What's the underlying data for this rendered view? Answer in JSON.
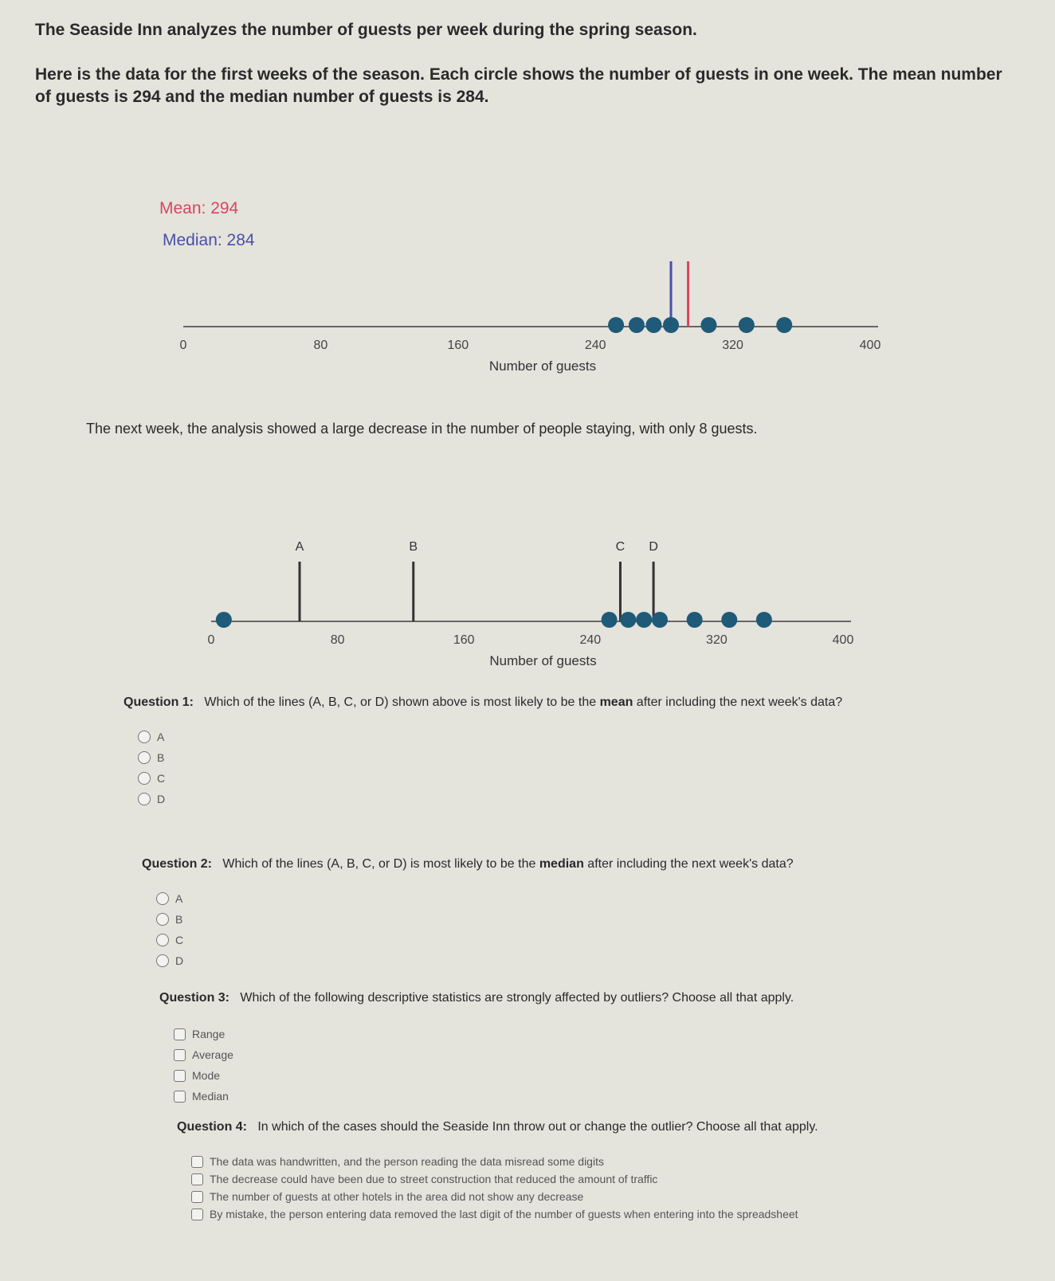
{
  "intro": {
    "line1": "The Seaside Inn analyzes the number of guests per week during the spring season.",
    "line2": "Here is the data for the first weeks of the season. Each circle shows the number of guests in one week. The mean number of guests is 294 and the median number of guests is 284."
  },
  "chart_data": [
    {
      "type": "scatter",
      "subtype": "dot-plot",
      "xlabel": "Number of guests",
      "xticks": [
        0,
        80,
        160,
        240,
        320,
        400
      ],
      "xlim": [
        0,
        400
      ],
      "values": [
        252,
        264,
        274,
        284,
        306,
        328,
        350
      ],
      "annotations": [
        {
          "label": "Mean: 294",
          "value": 294,
          "color": "#d9455f"
        },
        {
          "label": "Median: 284",
          "value": 284,
          "color": "#4b4fa8"
        }
      ],
      "dot_color": "#1f5a78"
    },
    {
      "type": "scatter",
      "subtype": "dot-plot",
      "xlabel": "Number of guests",
      "xticks": [
        0,
        80,
        160,
        240,
        320,
        400
      ],
      "xlim": [
        0,
        400
      ],
      "values": [
        8,
        252,
        264,
        274,
        284,
        306,
        328,
        350
      ],
      "lines": [
        {
          "label": "A",
          "value": 56
        },
        {
          "label": "B",
          "value": 128
        },
        {
          "label": "C",
          "value": 259
        },
        {
          "label": "D",
          "value": 280
        }
      ],
      "dot_color": "#1f5a78"
    }
  ],
  "between": "The next week, the analysis showed a large decrease in the number of people staying, with only 8 guests.",
  "questions": [
    {
      "label": "Question 1:",
      "pre": "Which of the lines (A, B, C, or D) shown above is most likely to be the ",
      "em": "mean",
      "post": " after including the next week's data?",
      "options": [
        "A",
        "B",
        "C",
        "D"
      ]
    },
    {
      "label": "Question 2:",
      "pre": "Which of the lines (A, B, C, or D) is most likely to be the ",
      "em": "median",
      "post": " after including the next week's data?",
      "options": [
        "A",
        "B",
        "C",
        "D"
      ]
    },
    {
      "label": "Question 3:",
      "pre": "Which of the following descriptive statistics are strongly affected by outliers? Choose all that apply.",
      "em": "",
      "post": "",
      "options": [
        "Range",
        "Average",
        "Mode",
        "Median"
      ]
    },
    {
      "label": "Question 4:",
      "pre": "In which of the cases should the Seaside Inn throw out or change the outlier? Choose all that apply.",
      "em": "",
      "post": "",
      "options": [
        "The data was handwritten, and the person reading the data misread some digits",
        "The decrease could have been due to street construction that reduced the amount of traffic",
        "The number of guests at other hotels in the area did not show any decrease",
        "By mistake, the person entering data removed the last digit of the number of guests when entering into the spreadsheet"
      ]
    }
  ]
}
